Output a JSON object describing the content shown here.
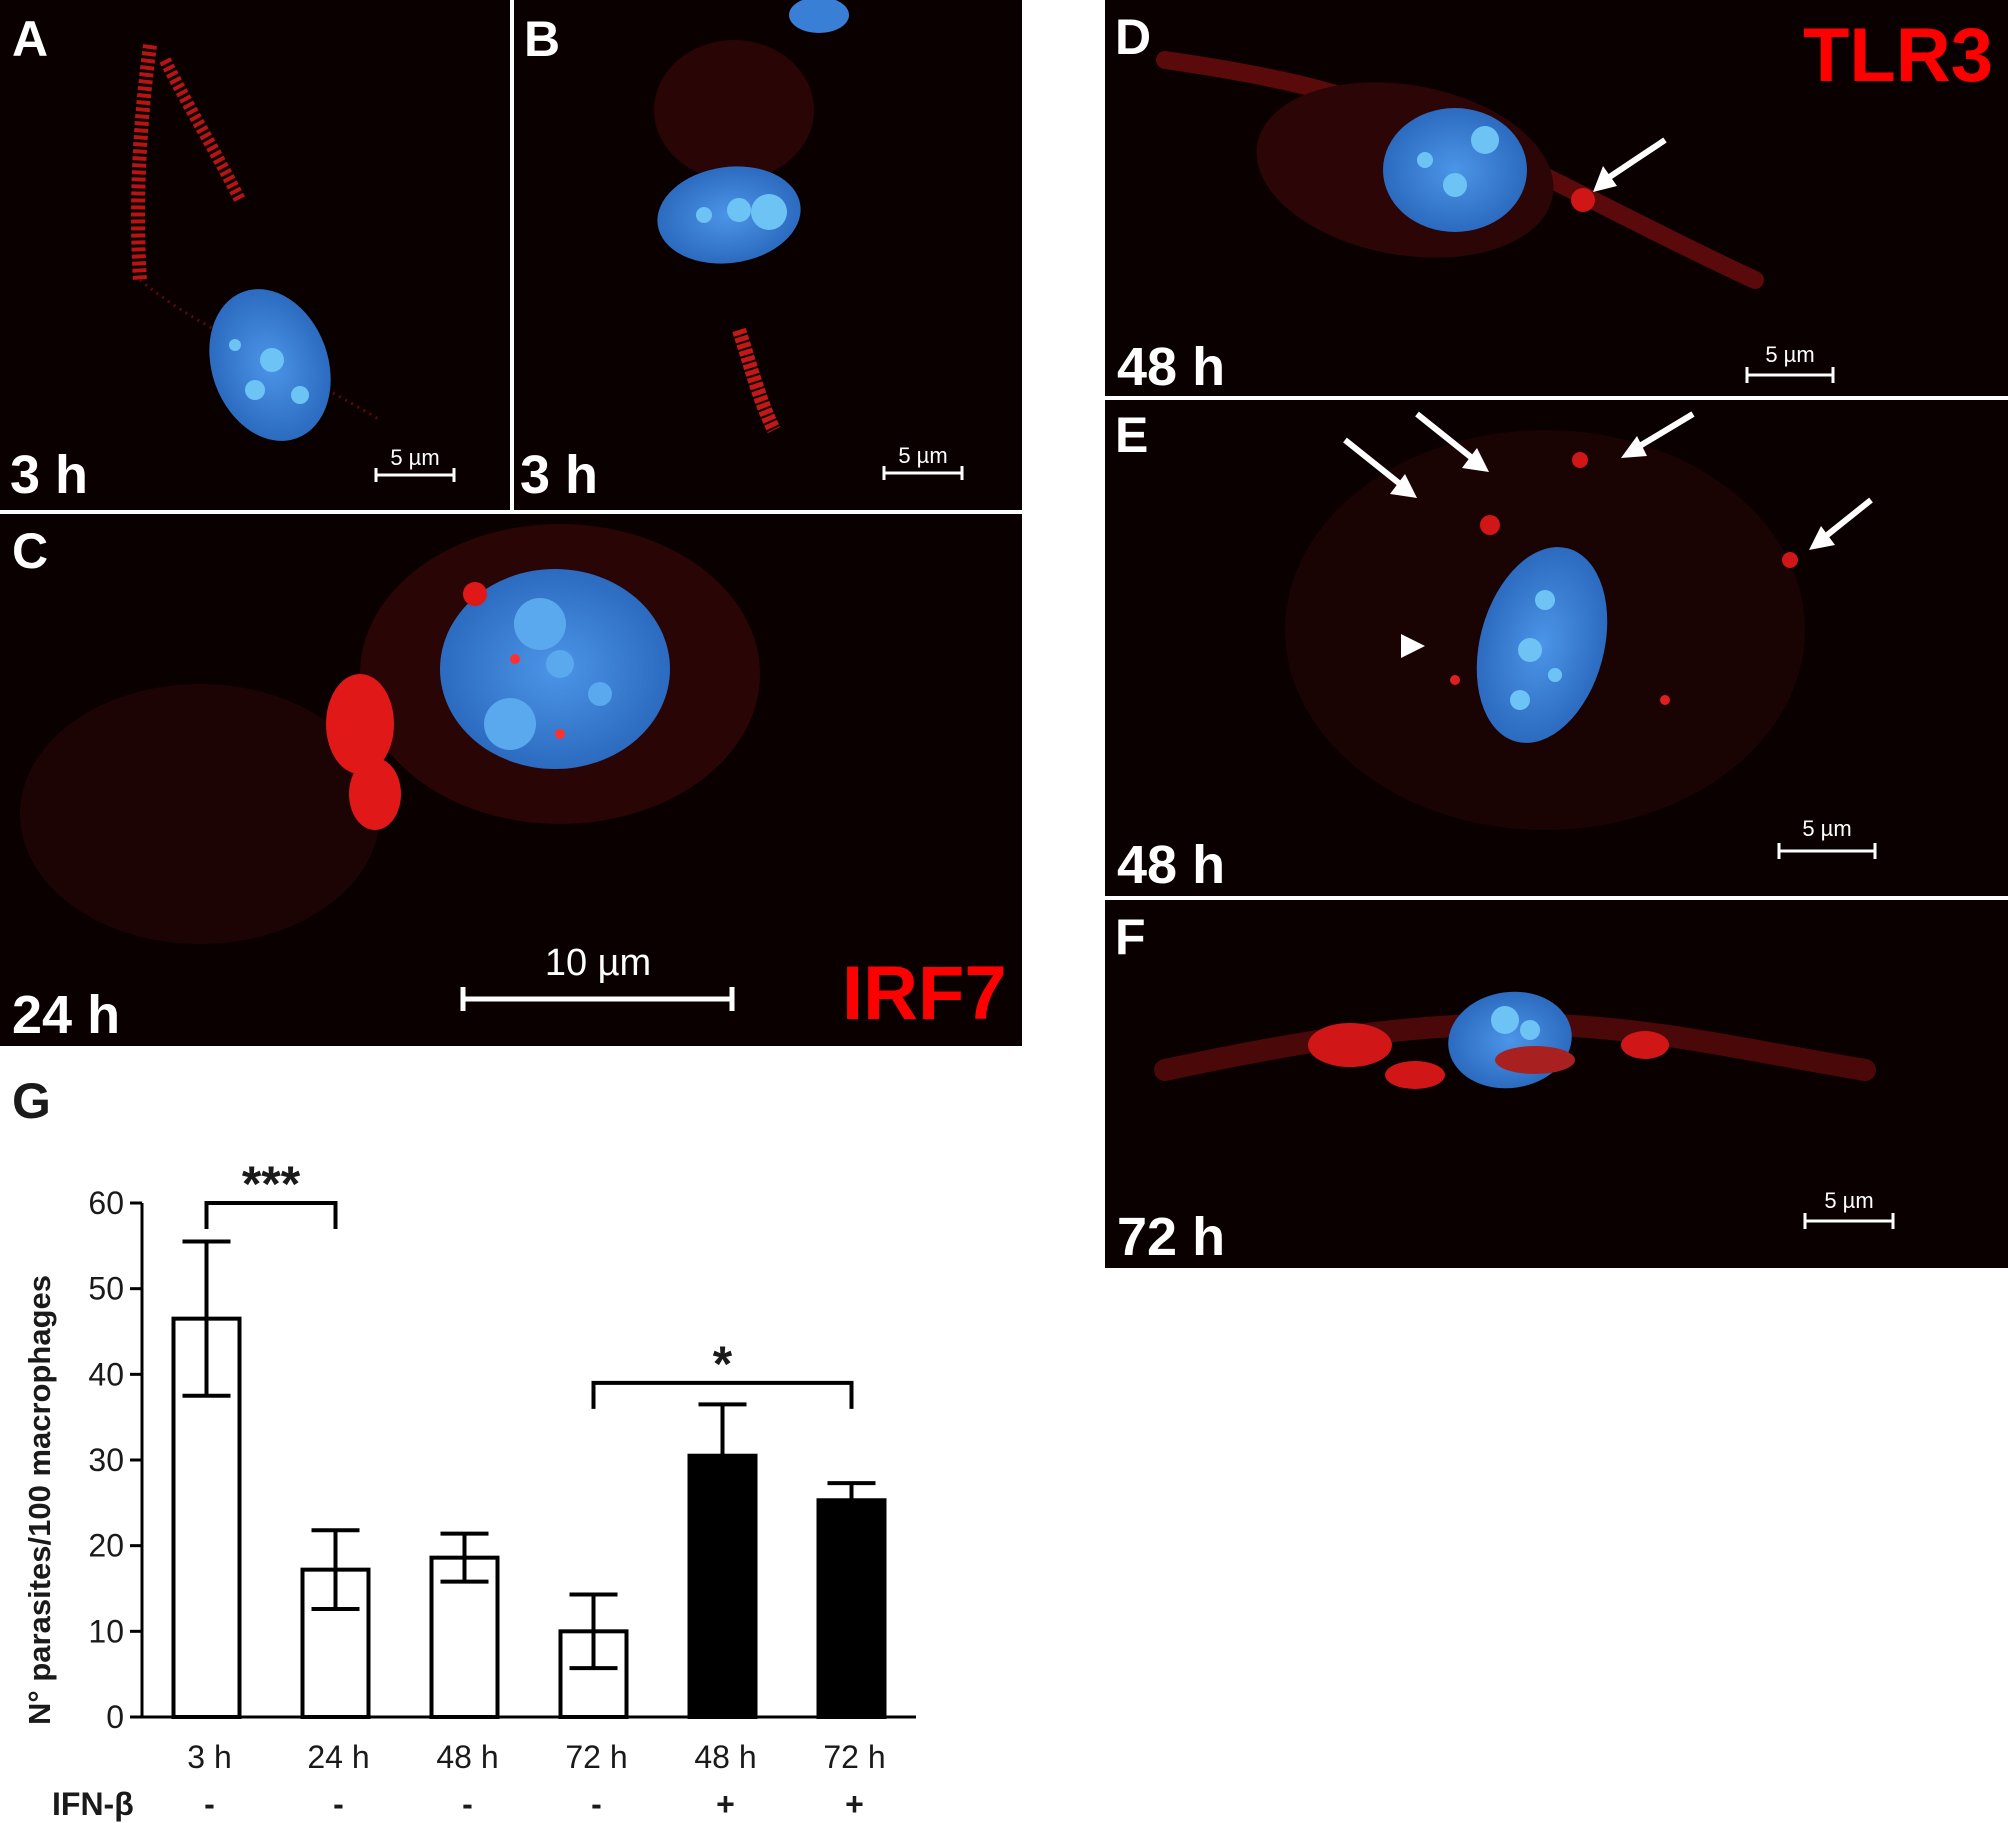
{
  "panels": {
    "a": {
      "label": "A",
      "time": "3 h",
      "scale": "5 µm"
    },
    "b": {
      "label": "B",
      "time": "3 h",
      "scale": "5 µm"
    },
    "c": {
      "label": "C",
      "time": "24 h",
      "scale": "10 µm",
      "marker": "IRF7"
    },
    "d": {
      "label": "D",
      "time": "48 h",
      "scale": "5 µm",
      "marker": "TLR3"
    },
    "e": {
      "label": "E",
      "time": "48 h",
      "scale": "5 µm"
    },
    "f": {
      "label": "F",
      "time": "72 h",
      "scale": "5 µm"
    },
    "g": {
      "label": "G"
    }
  },
  "colors": {
    "nucleus": "#3a7fd6",
    "stain": "#e01818",
    "background": "#0a0000",
    "open_bar": "#ffffff",
    "filled_bar": "#000000"
  },
  "chart_data": {
    "type": "bar",
    "ylabel": "N° parasites/100 macrophages",
    "ylim": [
      0,
      60
    ],
    "yticks": [
      0,
      10,
      20,
      30,
      40,
      50,
      60
    ],
    "categories": [
      "3 h",
      "24 h",
      "48 h",
      "72 h",
      "48 h",
      "72 h"
    ],
    "treatment_label": "IFN-β",
    "treatment": [
      "-",
      "-",
      "-",
      "-",
      "+",
      "+"
    ],
    "values": [
      46.5,
      17.2,
      18.6,
      10.0,
      30.5,
      25.3
    ],
    "errors": [
      9.0,
      4.6,
      2.8,
      4.3,
      6.0,
      2.0
    ],
    "fill": [
      "white",
      "white",
      "white",
      "white",
      "black",
      "black"
    ],
    "significance": [
      {
        "from": 0,
        "to": 1,
        "label": "***",
        "at": 60
      },
      {
        "from": 3,
        "to": 5,
        "label": "*",
        "at": 39
      }
    ]
  }
}
